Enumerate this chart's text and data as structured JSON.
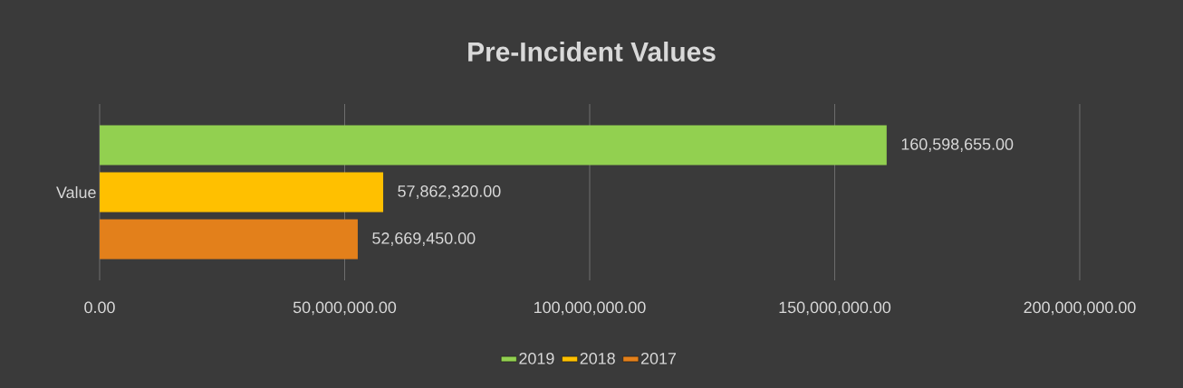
{
  "chart_data": {
    "type": "bar",
    "orientation": "horizontal",
    "title": "Pre-Incident Values",
    "categories": [
      "Value"
    ],
    "series": [
      {
        "name": "2019",
        "color": "#92d050",
        "values": [
          160598655
        ],
        "value_labels": [
          "160,598,655.00"
        ]
      },
      {
        "name": "2018",
        "color": "#ffc000",
        "values": [
          57862320
        ],
        "value_labels": [
          "57,862,320.00"
        ]
      },
      {
        "name": "2017",
        "color": "#e3801b",
        "values": [
          52669450
        ],
        "value_labels": [
          "52,669,450.00"
        ]
      }
    ],
    "xlim": [
      0,
      200000000
    ],
    "xticks": [
      {
        "value": 0,
        "label": "0.00"
      },
      {
        "value": 50000000,
        "label": "50,000,000.00"
      },
      {
        "value": 100000000,
        "label": "100,000,000.00"
      },
      {
        "value": 150000000,
        "label": "150,000,000.00"
      },
      {
        "value": 200000000,
        "label": "200,000,000.00"
      }
    ],
    "grid": "x",
    "legend": "bottom"
  }
}
